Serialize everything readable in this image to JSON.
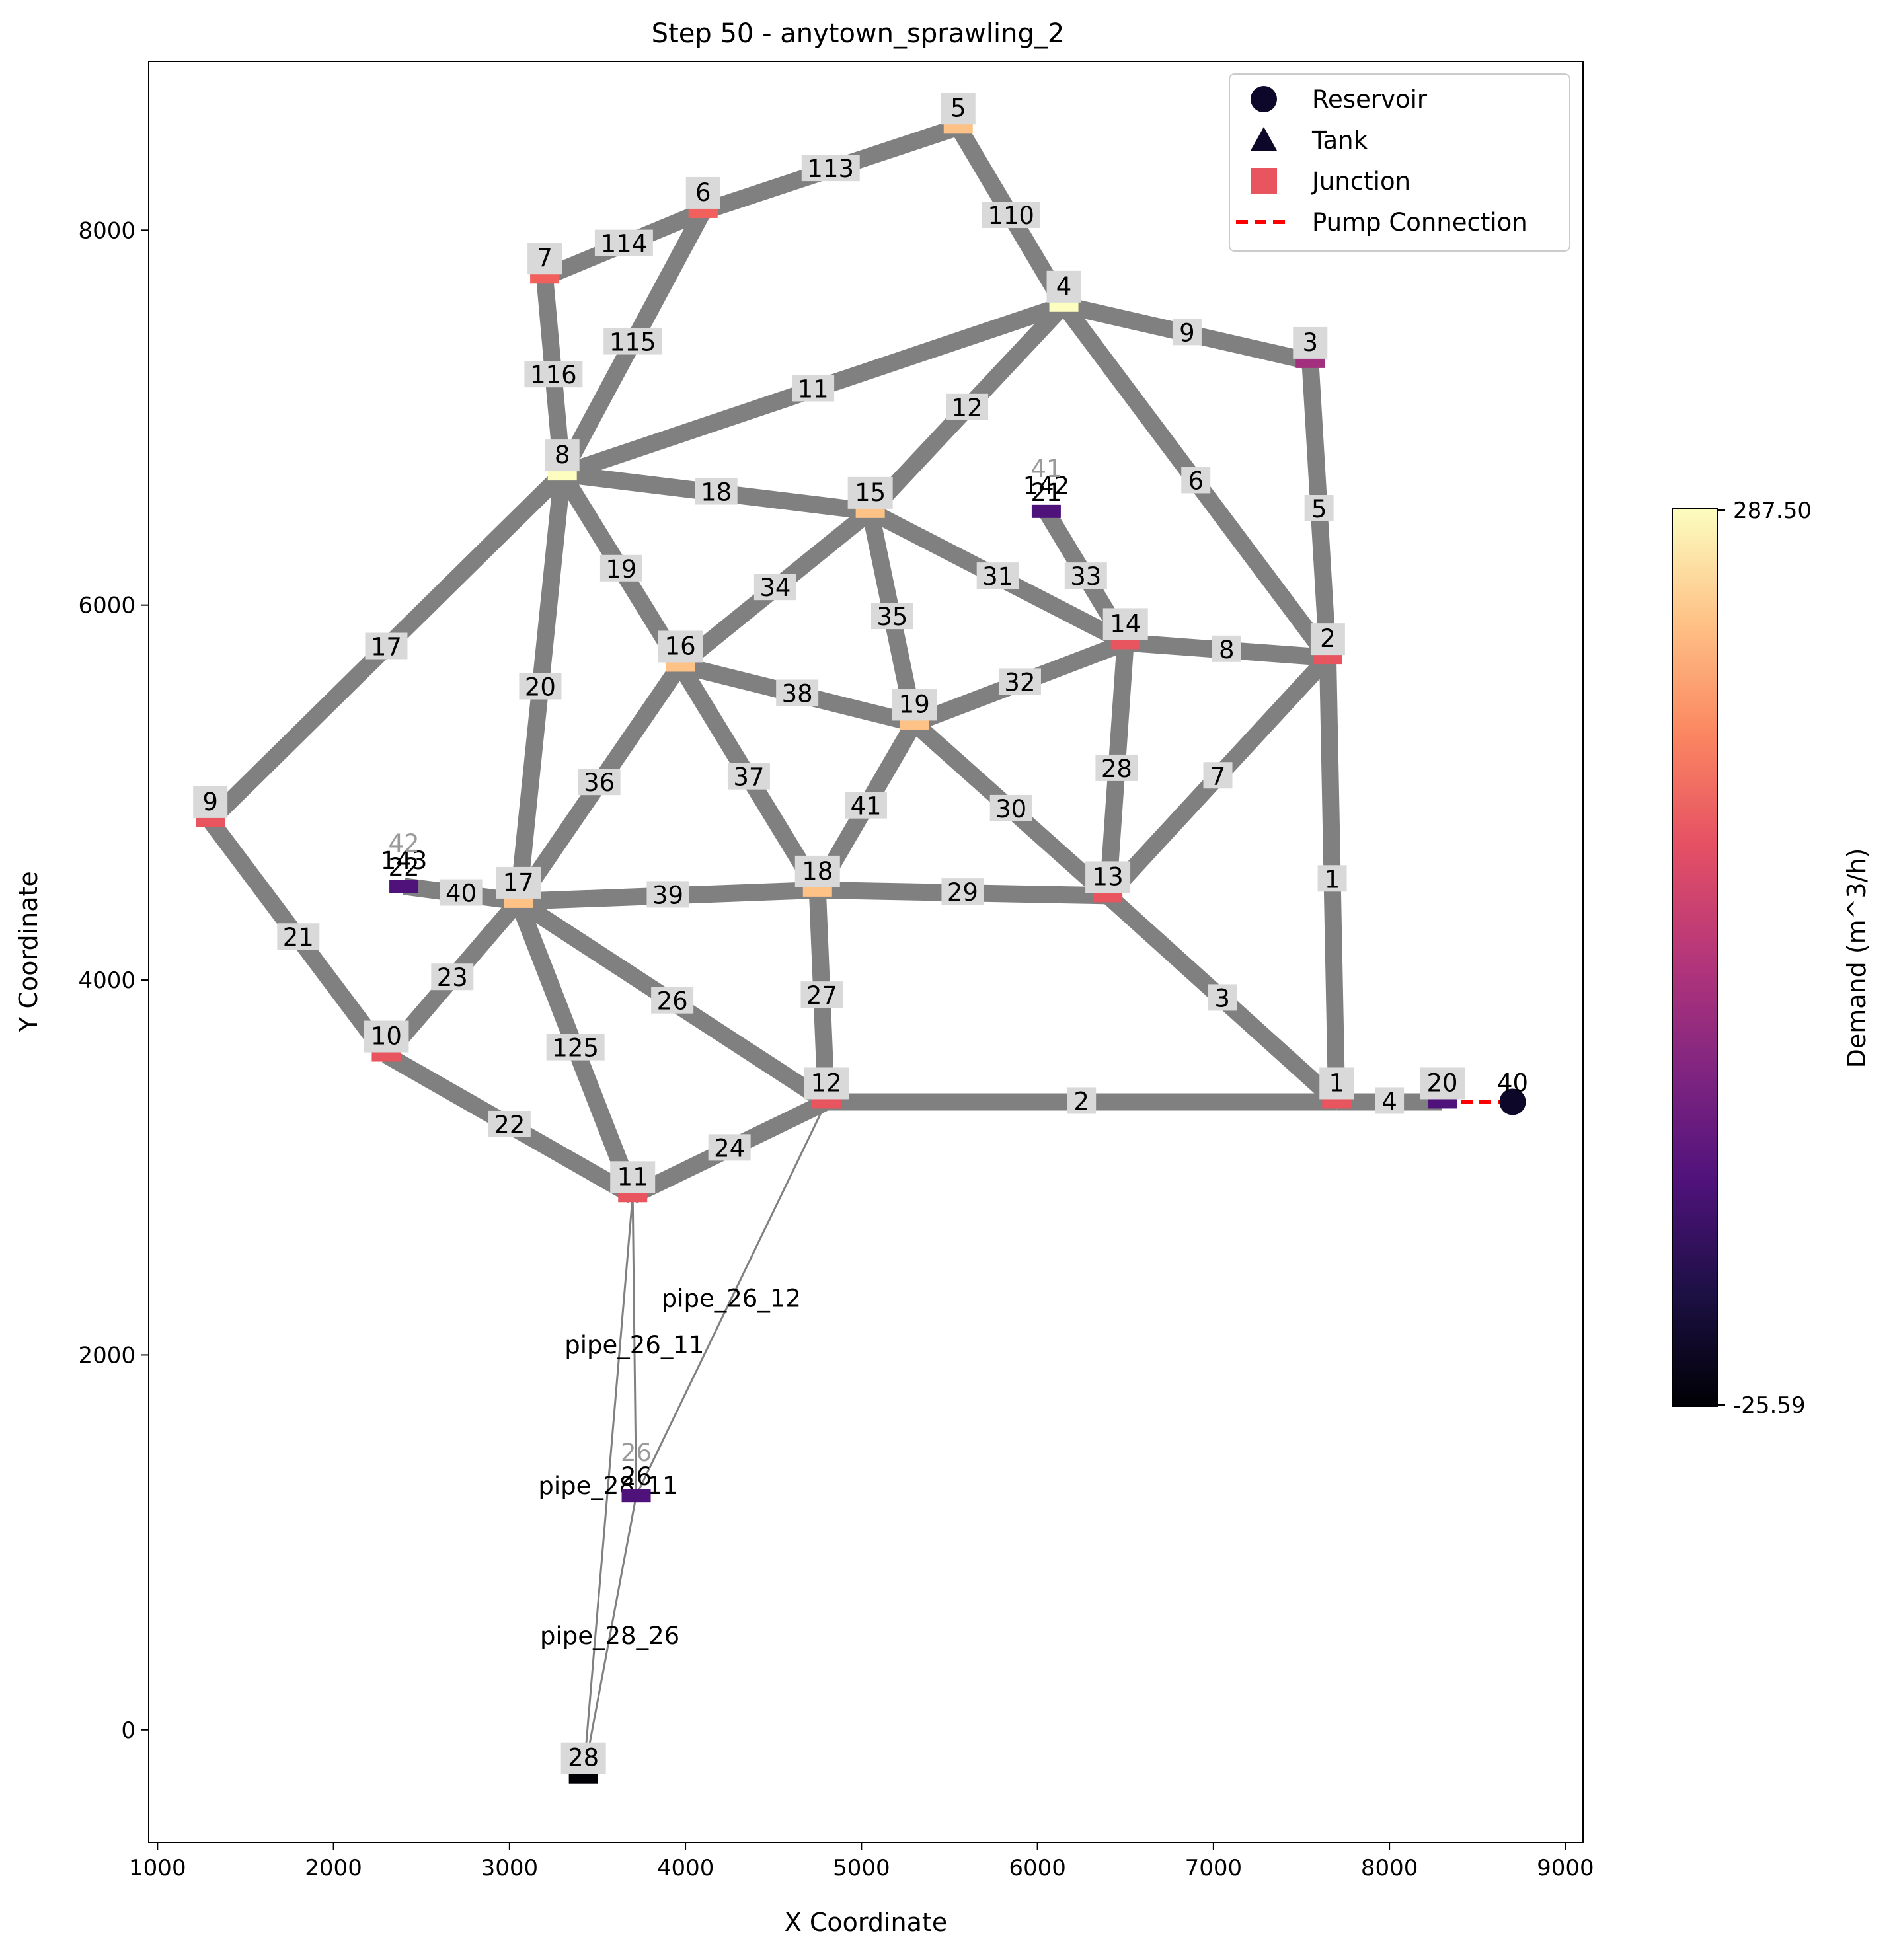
{
  "chart_data": {
    "type": "network",
    "title": "Step 50 - anytown_sprawling_2",
    "xlabel": "X Coordinate",
    "ylabel": "Y Coordinate",
    "xlim": [
      950,
      9100
    ],
    "ylim": [
      -600,
      8900
    ],
    "xticks": [
      1000,
      2000,
      3000,
      4000,
      5000,
      6000,
      7000,
      8000,
      9000
    ],
    "yticks": [
      0,
      2000,
      4000,
      6000,
      8000
    ],
    "grid": false,
    "legend_position": "top-right",
    "legend": [
      {
        "label": "Reservoir",
        "marker": "circle",
        "color": "#0d0829"
      },
      {
        "label": "Tank",
        "marker": "triangle",
        "color": "#0d0829"
      },
      {
        "label": "Junction",
        "marker": "square",
        "color": "#e8555f"
      },
      {
        "label": "Pump Connection",
        "marker": "dashed-line",
        "color": "#ff0000"
      }
    ],
    "colorbar": {
      "label": "Demand (m^3/h)",
      "min": -25.59,
      "max": 287.5,
      "min_label": "-25.59",
      "max_label": "287.50",
      "colormap": "magma",
      "stops": [
        "#000004",
        "#1c1044",
        "#4f127b",
        "#812581",
        "#b5367a",
        "#e55064",
        "#fb8761",
        "#fec287",
        "#fcfdbf"
      ]
    },
    "nodes": [
      {
        "id": "1",
        "x": 7700,
        "y": 3350,
        "type": "junction",
        "color": "#e8555f"
      },
      {
        "id": "2",
        "x": 7650,
        "y": 5720,
        "type": "junction",
        "color": "#e8555f"
      },
      {
        "id": "3",
        "x": 7550,
        "y": 7300,
        "type": "junction",
        "color": "#a3307e"
      },
      {
        "id": "4",
        "x": 6150,
        "y": 7600,
        "type": "junction",
        "color": "#fcfdbf"
      },
      {
        "id": "5",
        "x": 5550,
        "y": 8550,
        "type": "junction",
        "color": "#fec287"
      },
      {
        "id": "6",
        "x": 4100,
        "y": 8100,
        "type": "junction",
        "color": "#f1605d"
      },
      {
        "id": "7",
        "x": 3200,
        "y": 7750,
        "type": "junction",
        "color": "#f1605d"
      },
      {
        "id": "8",
        "x": 3300,
        "y": 6700,
        "type": "junction",
        "color": "#fcfdbf"
      },
      {
        "id": "9",
        "x": 1300,
        "y": 4850,
        "type": "junction",
        "color": "#e8555f"
      },
      {
        "id": "10",
        "x": 2300,
        "y": 3600,
        "type": "junction",
        "color": "#e8555f"
      },
      {
        "id": "11",
        "x": 3700,
        "y": 2850,
        "type": "junction",
        "color": "#e8555f"
      },
      {
        "id": "12",
        "x": 4800,
        "y": 3350,
        "type": "junction",
        "color": "#e8555f"
      },
      {
        "id": "13",
        "x": 6400,
        "y": 4450,
        "type": "junction",
        "color": "#e8555f"
      },
      {
        "id": "14",
        "x": 6500,
        "y": 5800,
        "type": "junction",
        "color": "#e8555f"
      },
      {
        "id": "15",
        "x": 5050,
        "y": 6500,
        "type": "junction",
        "color": "#fec287"
      },
      {
        "id": "16",
        "x": 3970,
        "y": 5680,
        "type": "junction",
        "color": "#fec287"
      },
      {
        "id": "17",
        "x": 3050,
        "y": 4420,
        "type": "junction",
        "color": "#fec287"
      },
      {
        "id": "18",
        "x": 4750,
        "y": 4480,
        "type": "junction",
        "color": "#fec287"
      },
      {
        "id": "19",
        "x": 5300,
        "y": 5370,
        "type": "junction",
        "color": "#fec287"
      },
      {
        "id": "20",
        "x": 8300,
        "y": 3350,
        "type": "junction",
        "color": "#4f127b"
      },
      {
        "id": "21",
        "x": 6050,
        "y": 6500,
        "type": "junction",
        "color": "#4f127b"
      },
      {
        "id": "22",
        "x": 2400,
        "y": 4500,
        "type": "junction",
        "color": "#4f127b"
      },
      {
        "id": "26",
        "x": 3720,
        "y": 1250,
        "type": "junction",
        "color": "#4f127b"
      },
      {
        "id": "28",
        "x": 3420,
        "y": -250,
        "type": "junction",
        "color": "#000004"
      },
      {
        "id": "40",
        "x": 8700,
        "y": 3350,
        "type": "reservoir",
        "color": "#0d0829"
      }
    ],
    "ghost_node_labels": [
      {
        "id": "41",
        "node": "21"
      },
      {
        "id": "42",
        "node": "22"
      },
      {
        "id": "26",
        "node": "26"
      }
    ],
    "pipes": [
      {
        "id": "1",
        "from": "2",
        "to": "1"
      },
      {
        "id": "2",
        "from": "12",
        "to": "1"
      },
      {
        "id": "3",
        "from": "13",
        "to": "1"
      },
      {
        "id": "4",
        "from": "1",
        "to": "20"
      },
      {
        "id": "5",
        "from": "3",
        "to": "2"
      },
      {
        "id": "6",
        "from": "4",
        "to": "2"
      },
      {
        "id": "7",
        "from": "13",
        "to": "2"
      },
      {
        "id": "8",
        "from": "14",
        "to": "2"
      },
      {
        "id": "9",
        "from": "4",
        "to": "3"
      },
      {
        "id": "11",
        "from": "8",
        "to": "4"
      },
      {
        "id": "12",
        "from": "15",
        "to": "4"
      },
      {
        "id": "17",
        "from": "9",
        "to": "8"
      },
      {
        "id": "18",
        "from": "8",
        "to": "15"
      },
      {
        "id": "19",
        "from": "8",
        "to": "16"
      },
      {
        "id": "20",
        "from": "8",
        "to": "17"
      },
      {
        "id": "21",
        "from": "9",
        "to": "10"
      },
      {
        "id": "22",
        "from": "10",
        "to": "11"
      },
      {
        "id": "23",
        "from": "10",
        "to": "17"
      },
      {
        "id": "24",
        "from": "11",
        "to": "12"
      },
      {
        "id": "26",
        "from": "17",
        "to": "12"
      },
      {
        "id": "27",
        "from": "18",
        "to": "12"
      },
      {
        "id": "28",
        "from": "14",
        "to": "13"
      },
      {
        "id": "29",
        "from": "18",
        "to": "13"
      },
      {
        "id": "30",
        "from": "19",
        "to": "13"
      },
      {
        "id": "31",
        "from": "15",
        "to": "14"
      },
      {
        "id": "32",
        "from": "19",
        "to": "14"
      },
      {
        "id": "33",
        "from": "21",
        "to": "14"
      },
      {
        "id": "34",
        "from": "16",
        "to": "15"
      },
      {
        "id": "35",
        "from": "15",
        "to": "19"
      },
      {
        "id": "36",
        "from": "17",
        "to": "16"
      },
      {
        "id": "37",
        "from": "16",
        "to": "18"
      },
      {
        "id": "38",
        "from": "16",
        "to": "19"
      },
      {
        "id": "39",
        "from": "17",
        "to": "18"
      },
      {
        "id": "40",
        "from": "22",
        "to": "17"
      },
      {
        "id": "41",
        "from": "18",
        "to": "19"
      },
      {
        "id": "110",
        "from": "5",
        "to": "4"
      },
      {
        "id": "113",
        "from": "6",
        "to": "5"
      },
      {
        "id": "114",
        "from": "7",
        "to": "6"
      },
      {
        "id": "115",
        "from": "8",
        "to": "6"
      },
      {
        "id": "116",
        "from": "7",
        "to": "8"
      },
      {
        "id": "125",
        "from": "17",
        "to": "11"
      },
      {
        "id": "142",
        "from": "21",
        "to": "21",
        "label_only": true
      },
      {
        "id": "143",
        "from": "22",
        "to": "22",
        "label_only": true
      }
    ],
    "thin_pipes": [
      {
        "id": "pipe_26_12",
        "from": "26",
        "to": "12"
      },
      {
        "id": "pipe_26_11",
        "from": "26",
        "to": "11"
      },
      {
        "id": "pipe_28_11",
        "from": "28",
        "to": "11"
      },
      {
        "id": "pipe_28_26",
        "from": "28",
        "to": "26"
      }
    ],
    "pump_connections": [
      {
        "from": "20",
        "to": "40"
      }
    ]
  }
}
